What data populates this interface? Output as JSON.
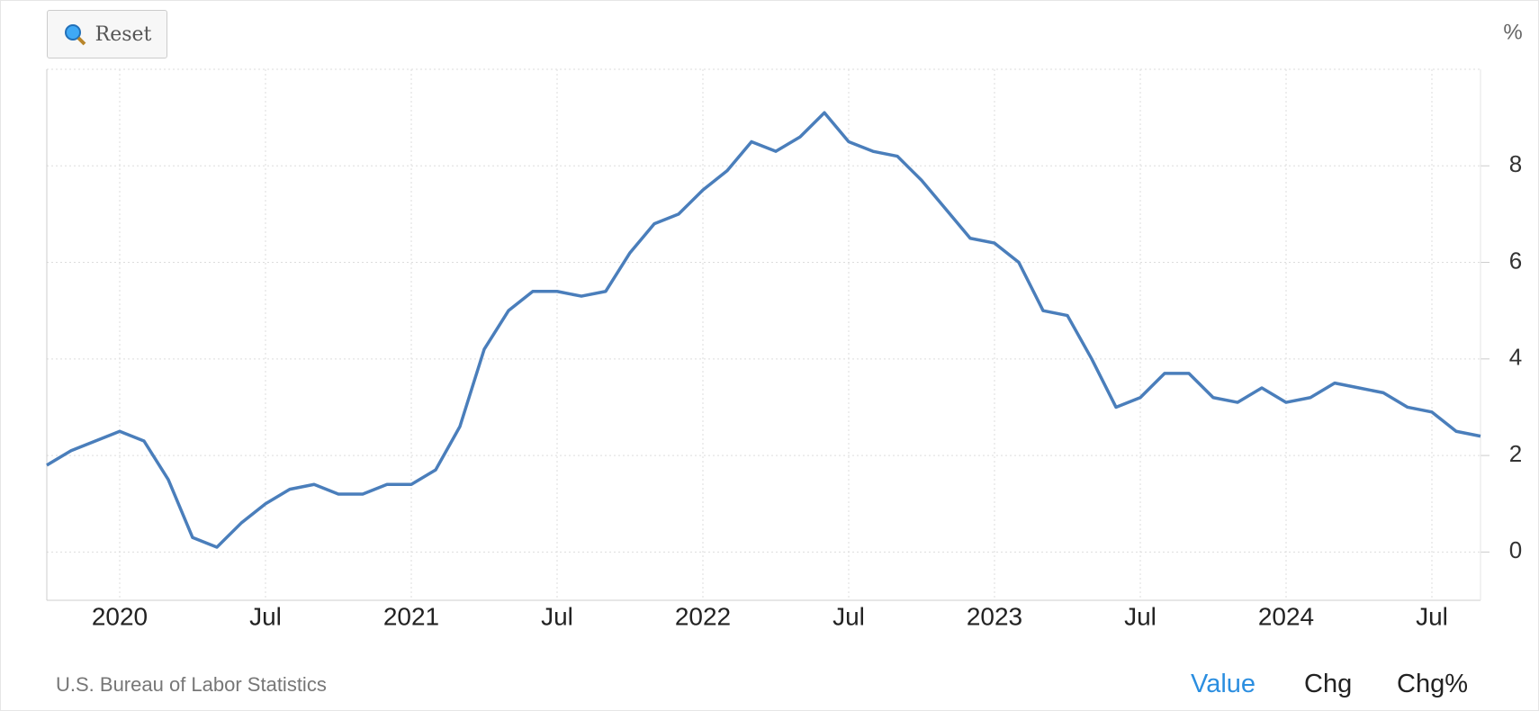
{
  "chart_data": {
    "type": "line",
    "y_unit": "%",
    "source": "U.S. Bureau of Labor Statistics",
    "x": [
      "2019-10",
      "2019-11",
      "2019-12",
      "2020-01",
      "2020-02",
      "2020-03",
      "2020-04",
      "2020-05",
      "2020-06",
      "2020-07",
      "2020-08",
      "2020-09",
      "2020-10",
      "2020-11",
      "2020-12",
      "2021-01",
      "2021-02",
      "2021-03",
      "2021-04",
      "2021-05",
      "2021-06",
      "2021-07",
      "2021-08",
      "2021-09",
      "2021-10",
      "2021-11",
      "2021-12",
      "2022-01",
      "2022-02",
      "2022-03",
      "2022-04",
      "2022-05",
      "2022-06",
      "2022-07",
      "2022-08",
      "2022-09",
      "2022-10",
      "2022-11",
      "2022-12",
      "2023-01",
      "2023-02",
      "2023-03",
      "2023-04",
      "2023-05",
      "2023-06",
      "2023-07",
      "2023-08",
      "2023-09",
      "2023-10",
      "2023-11",
      "2023-12",
      "2024-01",
      "2024-02",
      "2024-03",
      "2024-04",
      "2024-05",
      "2024-06",
      "2024-07",
      "2024-08",
      "2024-09"
    ],
    "values": [
      1.8,
      2.1,
      2.3,
      2.5,
      2.3,
      1.5,
      0.3,
      0.1,
      0.6,
      1.0,
      1.3,
      1.4,
      1.2,
      1.2,
      1.4,
      1.4,
      1.7,
      2.6,
      4.2,
      5.0,
      5.4,
      5.4,
      5.3,
      5.4,
      6.2,
      6.8,
      7.0,
      7.5,
      7.9,
      8.5,
      8.3,
      8.6,
      9.1,
      8.5,
      8.3,
      8.2,
      7.7,
      7.1,
      6.5,
      6.4,
      6.0,
      5.0,
      4.9,
      4.0,
      3.0,
      3.2,
      3.7,
      3.7,
      3.2,
      3.1,
      3.4,
      3.1,
      3.2,
      3.5,
      3.4,
      3.3,
      3.0,
      2.9,
      2.5,
      2.4
    ],
    "color": "#4a7ebb",
    "xlim": [
      "2019-10",
      "2024-09"
    ],
    "xticks": [
      {
        "value": "2020-01",
        "label": "2020"
      },
      {
        "value": "2020-07",
        "label": "Jul"
      },
      {
        "value": "2021-01",
        "label": "2021"
      },
      {
        "value": "2021-07",
        "label": "Jul"
      },
      {
        "value": "2022-01",
        "label": "2022"
      },
      {
        "value": "2022-07",
        "label": "Jul"
      },
      {
        "value": "2023-01",
        "label": "2023"
      },
      {
        "value": "2023-07",
        "label": "Jul"
      },
      {
        "value": "2024-01",
        "label": "2024"
      },
      {
        "value": "2024-07",
        "label": "Jul"
      }
    ],
    "ylim": [
      -1,
      10
    ],
    "yticks": [
      0,
      2,
      4,
      6,
      8
    ],
    "grid": true
  },
  "controls": {
    "reset": "Reset",
    "tabs": [
      "Value",
      "Chg",
      "Chg%"
    ]
  }
}
